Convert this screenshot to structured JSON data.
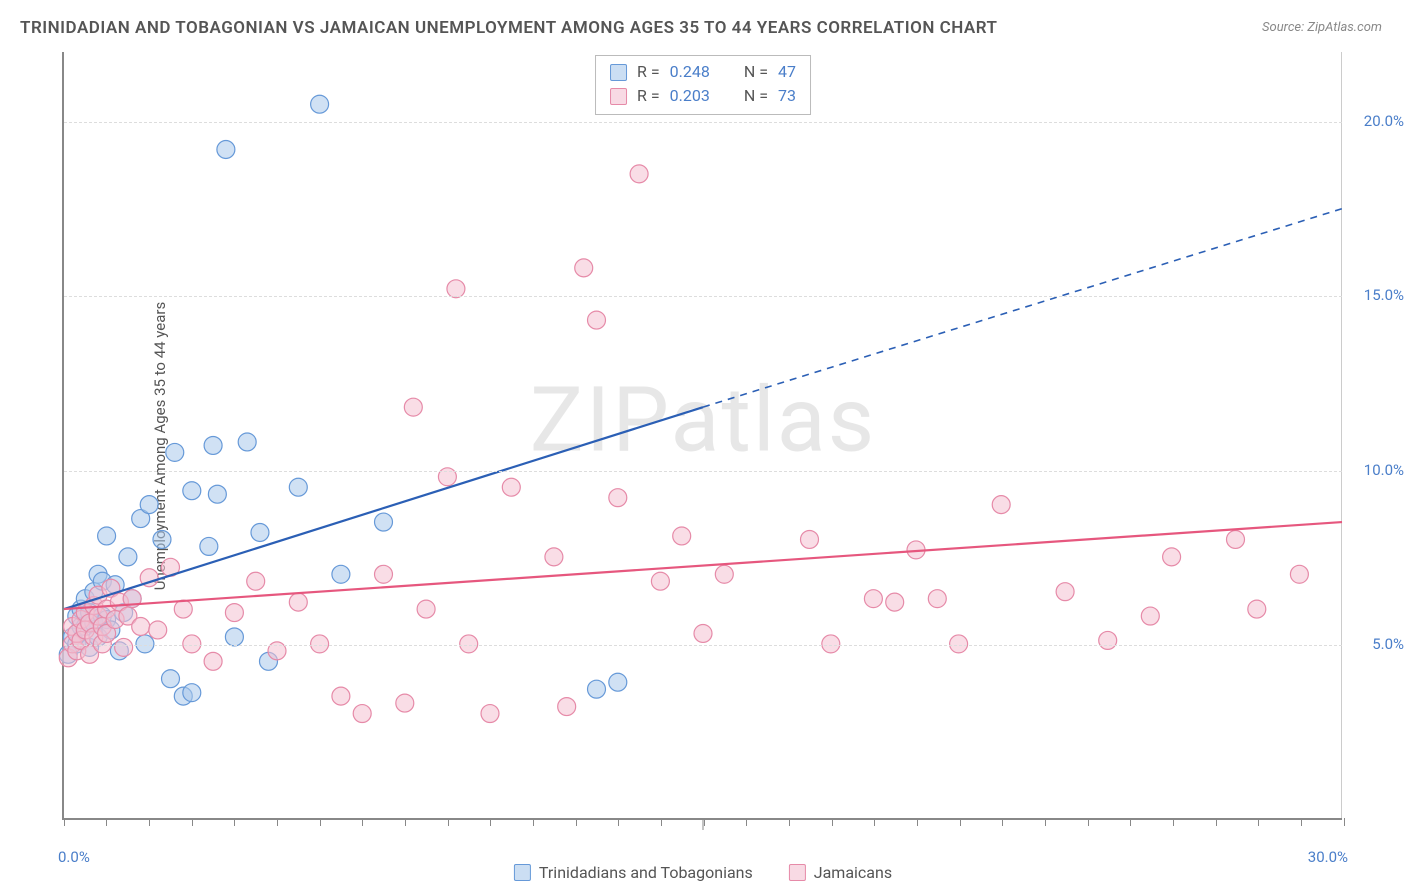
{
  "title": "TRINIDADIAN AND TOBAGONIAN VS JAMAICAN UNEMPLOYMENT AMONG AGES 35 TO 44 YEARS CORRELATION CHART",
  "source": "Source: ZipAtlas.com",
  "y_axis_label": "Unemployment Among Ages 35 to 44 years",
  "watermark": "ZIPatlas",
  "xlim": [
    0,
    30
  ],
  "ylim": [
    0,
    22
  ],
  "x_ticks": [
    0,
    15,
    30
  ],
  "x_tick_labels": [
    "0.0%",
    "",
    "30.0%"
  ],
  "y_ticks": [
    5,
    10,
    15,
    20
  ],
  "y_tick_labels": [
    "5.0%",
    "10.0%",
    "15.0%",
    "20.0%"
  ],
  "x_small_ticks": [
    0,
    1,
    2,
    3,
    4,
    5,
    6,
    7,
    8,
    9,
    10,
    11,
    12,
    13,
    14,
    15,
    16,
    17,
    18,
    19,
    20,
    21,
    22,
    23,
    24,
    25,
    26,
    27,
    28,
    29,
    30
  ],
  "grid_color": "#dddddd",
  "axis_color": "#888888",
  "background_color": "#ffffff",
  "series": [
    {
      "name": "Trinidadians and Tobagonians",
      "color_stroke": "#6699d8",
      "color_fill": "#a9c8eb",
      "fill_opacity": 0.55,
      "marker_radius": 9,
      "stats": {
        "R": "0.248",
        "N": "47"
      },
      "trend": {
        "x1": 0,
        "y1": 6.0,
        "x2": 15,
        "y2": 11.8,
        "x2_dash": 30,
        "y2_dash": 17.5,
        "color": "#2b5fb5",
        "width": 2.2
      },
      "points": [
        [
          0.1,
          4.7
        ],
        [
          0.2,
          5.2
        ],
        [
          0.3,
          5.0
        ],
        [
          0.3,
          5.8
        ],
        [
          0.4,
          5.5
        ],
        [
          0.4,
          6.0
        ],
        [
          0.5,
          6.3
        ],
        [
          0.5,
          5.5
        ],
        [
          0.6,
          4.9
        ],
        [
          0.6,
          5.9
        ],
        [
          0.7,
          5.6
        ],
        [
          0.7,
          6.5
        ],
        [
          0.8,
          5.2
        ],
        [
          0.8,
          7.0
        ],
        [
          0.9,
          5.8
        ],
        [
          0.9,
          6.8
        ],
        [
          1.0,
          5.7
        ],
        [
          1.0,
          8.1
        ],
        [
          1.1,
          5.4
        ],
        [
          1.2,
          6.7
        ],
        [
          1.3,
          4.8
        ],
        [
          1.4,
          5.9
        ],
        [
          1.5,
          7.5
        ],
        [
          1.6,
          6.3
        ],
        [
          1.8,
          8.6
        ],
        [
          1.9,
          5.0
        ],
        [
          2.0,
          9.0
        ],
        [
          2.3,
          8.0
        ],
        [
          2.5,
          4.0
        ],
        [
          2.6,
          10.5
        ],
        [
          2.8,
          3.5
        ],
        [
          3.0,
          9.4
        ],
        [
          3.0,
          3.6
        ],
        [
          3.4,
          7.8
        ],
        [
          3.5,
          10.7
        ],
        [
          3.6,
          9.3
        ],
        [
          3.8,
          19.2
        ],
        [
          4.0,
          5.2
        ],
        [
          4.3,
          10.8
        ],
        [
          4.6,
          8.2
        ],
        [
          4.8,
          4.5
        ],
        [
          5.5,
          9.5
        ],
        [
          6.0,
          20.5
        ],
        [
          6.5,
          7.0
        ],
        [
          7.5,
          8.5
        ],
        [
          12.5,
          3.7
        ],
        [
          13.0,
          3.9
        ]
      ]
    },
    {
      "name": "Jamaicans",
      "color_stroke": "#e68aa8",
      "color_fill": "#f4c1d2",
      "fill_opacity": 0.55,
      "marker_radius": 9,
      "stats": {
        "R": "0.203",
        "N": "73"
      },
      "trend": {
        "x1": 0,
        "y1": 6.0,
        "x2": 30,
        "y2": 8.5,
        "color": "#e6577e",
        "width": 2.2
      },
      "points": [
        [
          0.1,
          4.6
        ],
        [
          0.2,
          5.0
        ],
        [
          0.2,
          5.5
        ],
        [
          0.3,
          4.8
        ],
        [
          0.3,
          5.3
        ],
        [
          0.4,
          5.7
        ],
        [
          0.4,
          5.1
        ],
        [
          0.5,
          5.9
        ],
        [
          0.5,
          5.4
        ],
        [
          0.6,
          4.7
        ],
        [
          0.6,
          5.6
        ],
        [
          0.7,
          6.1
        ],
        [
          0.7,
          5.2
        ],
        [
          0.8,
          5.8
        ],
        [
          0.8,
          6.4
        ],
        [
          0.9,
          5.0
        ],
        [
          0.9,
          5.5
        ],
        [
          1.0,
          6.0
        ],
        [
          1.0,
          5.3
        ],
        [
          1.1,
          6.6
        ],
        [
          1.2,
          5.7
        ],
        [
          1.3,
          6.2
        ],
        [
          1.4,
          4.9
        ],
        [
          1.5,
          5.8
        ],
        [
          1.6,
          6.3
        ],
        [
          1.8,
          5.5
        ],
        [
          2.0,
          6.9
        ],
        [
          2.2,
          5.4
        ],
        [
          2.5,
          7.2
        ],
        [
          2.8,
          6.0
        ],
        [
          3.0,
          5.0
        ],
        [
          3.5,
          4.5
        ],
        [
          4.0,
          5.9
        ],
        [
          4.5,
          6.8
        ],
        [
          5.0,
          4.8
        ],
        [
          5.5,
          6.2
        ],
        [
          6.0,
          5.0
        ],
        [
          6.5,
          3.5
        ],
        [
          7.0,
          3.0
        ],
        [
          7.5,
          7.0
        ],
        [
          8.0,
          3.3
        ],
        [
          8.2,
          11.8
        ],
        [
          8.5,
          6.0
        ],
        [
          9.0,
          9.8
        ],
        [
          9.2,
          15.2
        ],
        [
          9.5,
          5.0
        ],
        [
          10.0,
          3.0
        ],
        [
          10.5,
          9.5
        ],
        [
          11.5,
          7.5
        ],
        [
          11.8,
          3.2
        ],
        [
          12.2,
          15.8
        ],
        [
          12.5,
          14.3
        ],
        [
          13.0,
          9.2
        ],
        [
          13.5,
          18.5
        ],
        [
          14.0,
          6.8
        ],
        [
          14.5,
          8.1
        ],
        [
          15.0,
          5.3
        ],
        [
          15.5,
          7.0
        ],
        [
          17.5,
          8.0
        ],
        [
          18.0,
          5.0
        ],
        [
          19.0,
          6.3
        ],
        [
          19.5,
          6.2
        ],
        [
          20.0,
          7.7
        ],
        [
          20.5,
          6.3
        ],
        [
          21.0,
          5.0
        ],
        [
          22.0,
          9.0
        ],
        [
          23.5,
          6.5
        ],
        [
          24.5,
          5.1
        ],
        [
          25.5,
          5.8
        ],
        [
          26.0,
          7.5
        ],
        [
          27.5,
          8.0
        ],
        [
          28.0,
          6.0
        ],
        [
          29.0,
          7.0
        ]
      ]
    }
  ],
  "stats_box_labels": {
    "R": "R",
    "equals": "=",
    "N": "N"
  },
  "legend_labels": [
    "Trinidadians and Tobagonians",
    "Jamaicans"
  ]
}
